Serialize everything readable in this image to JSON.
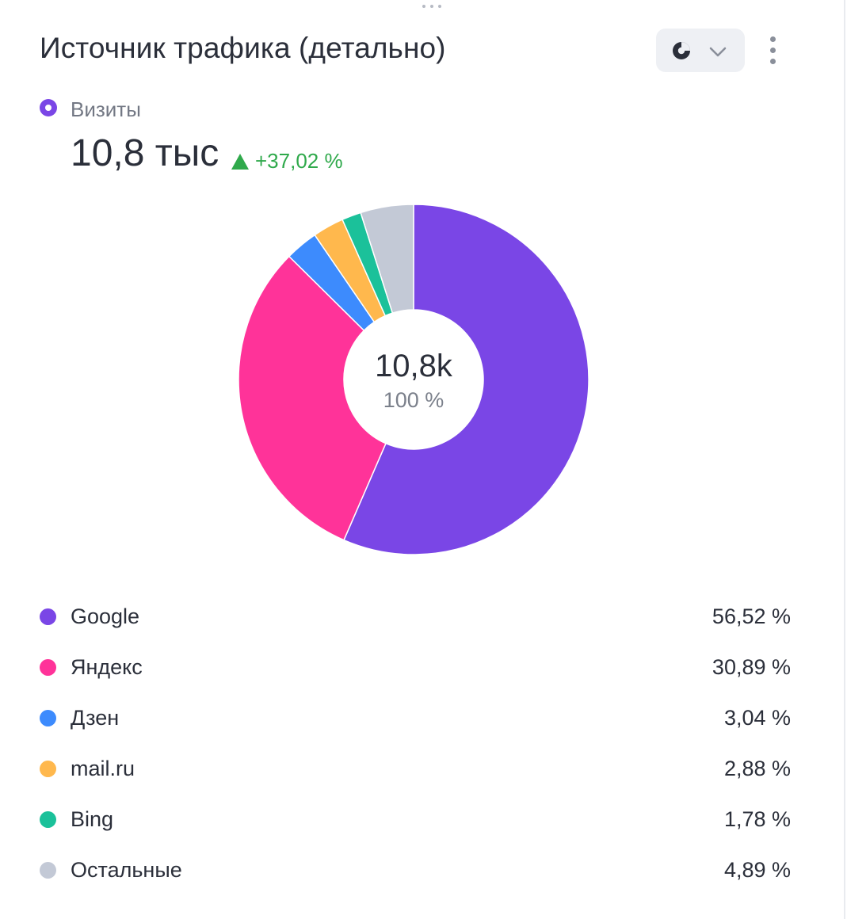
{
  "widget": {
    "title": "Источник трафика (детально)",
    "chart_switch_icon": "pie-chart-icon",
    "dropdown_icon": "chevron-down-icon",
    "menu_icon": "vertical-dots-icon"
  },
  "metric": {
    "label": "Визиты",
    "value": "10,8 тыс",
    "delta": "+37,02 %",
    "delta_direction": "up",
    "color": "#7a46e6",
    "delta_color": "#2fa94b"
  },
  "center": {
    "total": "10,8k",
    "percent": "100 %"
  },
  "chart_data": {
    "type": "pie",
    "categories": [
      "Google",
      "Яндекс",
      "Дзен",
      "mail.ru",
      "Bing",
      "Остальные"
    ],
    "values": [
      56.52,
      30.89,
      3.04,
      2.88,
      1.78,
      4.89
    ],
    "value_labels": [
      "56,52 %",
      "30,89 %",
      "3,04 %",
      "2,88 %",
      "1,78 %",
      "4,89 %"
    ],
    "colors": [
      "#7a46e6",
      "#ff3399",
      "#3d8bfd",
      "#ffb84d",
      "#1bc19a",
      "#c3c9d6"
    ],
    "legend_position": "bottom"
  }
}
